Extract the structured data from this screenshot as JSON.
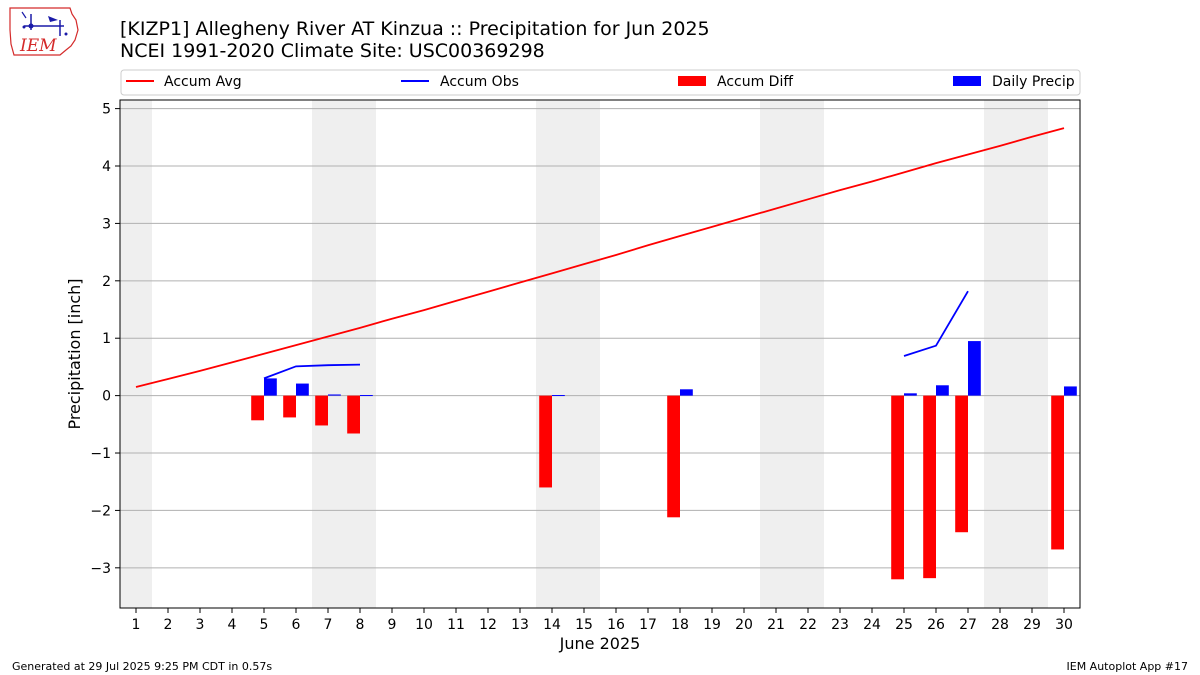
{
  "title_line1": "[KIZP1] Allegheny River AT Kinzua :: Precipitation for Jun 2025",
  "title_line2": "NCEI 1991-2020 Climate Site: USC00369298",
  "footer_left": "Generated at 29 Jul 2025 9:25 PM CDT in 0.57s",
  "footer_right": "IEM Autoplot App #17",
  "logo_text": "IEM",
  "chart_data": {
    "type": "bar",
    "xlabel": "June 2025",
    "ylabel": "Precipitation [inch]",
    "xlim": [
      0.5,
      30.5
    ],
    "ylim": [
      -3.7,
      5.15
    ],
    "yticks": [
      -3,
      -2,
      -1,
      0,
      1,
      2,
      3,
      4,
      5
    ],
    "xticks": [
      1,
      2,
      3,
      4,
      5,
      6,
      7,
      8,
      9,
      10,
      11,
      12,
      13,
      14,
      15,
      16,
      17,
      18,
      19,
      20,
      21,
      22,
      23,
      24,
      25,
      26,
      27,
      28,
      29,
      30
    ],
    "weekend_bands": [
      [
        0.5,
        1.5
      ],
      [
        6.5,
        8.5
      ],
      [
        13.5,
        15.5
      ],
      [
        20.5,
        22.5
      ],
      [
        27.5,
        29.5
      ]
    ],
    "grid": "y",
    "legend": {
      "placement": "top",
      "entries": [
        {
          "label": "Accum Avg",
          "kind": "line",
          "color": "#ff0000"
        },
        {
          "label": "Accum Obs",
          "kind": "line",
          "color": "#0000ff"
        },
        {
          "label": "Accum Diff",
          "kind": "bar",
          "color": "#ff0000"
        },
        {
          "label": "Daily Precip",
          "kind": "bar",
          "color": "#0000ff"
        }
      ]
    },
    "accum_avg": [
      [
        1,
        0.15
      ],
      [
        2,
        0.29
      ],
      [
        3,
        0.43
      ],
      [
        4,
        0.58
      ],
      [
        5,
        0.73
      ],
      [
        6,
        0.88
      ],
      [
        7,
        1.03
      ],
      [
        8,
        1.18
      ],
      [
        9,
        1.34
      ],
      [
        10,
        1.49
      ],
      [
        11,
        1.65
      ],
      [
        12,
        1.81
      ],
      [
        13,
        1.97
      ],
      [
        14,
        2.13
      ],
      [
        15,
        2.29
      ],
      [
        16,
        2.45
      ],
      [
        17,
        2.62
      ],
      [
        18,
        2.78
      ],
      [
        19,
        2.94
      ],
      [
        20,
        3.1
      ],
      [
        21,
        3.26
      ],
      [
        22,
        3.42
      ],
      [
        23,
        3.58
      ],
      [
        24,
        3.73
      ],
      [
        25,
        3.89
      ],
      [
        26,
        4.05
      ],
      [
        27,
        4.2
      ],
      [
        28,
        4.35
      ],
      [
        29,
        4.51
      ],
      [
        30,
        4.66
      ]
    ],
    "accum_obs_segments": [
      [
        [
          5,
          0.3
        ],
        [
          6,
          0.51
        ],
        [
          7,
          0.53
        ],
        [
          8,
          0.54
        ]
      ],
      [
        [
          25,
          0.69
        ],
        [
          26,
          0.87
        ],
        [
          27,
          1.82
        ]
      ]
    ],
    "accum_diff": [
      [
        5,
        -0.43
      ],
      [
        6,
        -0.38
      ],
      [
        7,
        -0.52
      ],
      [
        8,
        -0.66
      ],
      [
        14,
        -1.6
      ],
      [
        18,
        -2.12
      ],
      [
        25,
        -3.2
      ],
      [
        26,
        -3.18
      ],
      [
        27,
        -2.38
      ],
      [
        30,
        -2.68
      ]
    ],
    "daily_precip": [
      [
        5,
        0.3
      ],
      [
        6,
        0.21
      ],
      [
        7,
        0.02
      ],
      [
        8,
        0.01
      ],
      [
        14,
        0.01
      ],
      [
        18,
        0.11
      ],
      [
        25,
        0.04
      ],
      [
        26,
        0.18
      ],
      [
        27,
        0.95
      ],
      [
        30,
        0.16
      ]
    ],
    "colors": {
      "avg": "#ff0000",
      "obs": "#0000ff",
      "diff": "#ff0000",
      "daily": "#0000ff",
      "band": "#efefef",
      "grid": "#b0b0b0"
    }
  }
}
